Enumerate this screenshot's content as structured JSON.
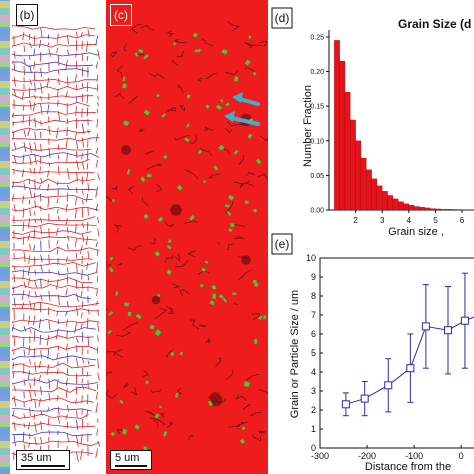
{
  "panels": {
    "b": {
      "tag": "(b)",
      "scale_label": "35 um"
    },
    "c": {
      "tag": "(c)",
      "scale_label": "5 um"
    },
    "d": {
      "tag": "(d)"
    },
    "e": {
      "tag": "(e)"
    }
  },
  "colors": {
    "map_red": "#ee1c1c",
    "grain_boundary_red": "#d8262a",
    "boundary_blue": "#3a3ad0",
    "particle_green": "#35d23c",
    "arrow_cyan": "#3fb0c8",
    "histogram_bar": "#e5131a",
    "line_series": "#2a2ab0"
  },
  "chart_data": [
    {
      "type": "bar",
      "panel": "d",
      "title": "Grain Size (d",
      "xlabel": "Grain size ,",
      "ylabel": "Number Fraction",
      "x_ticks": [
        "2",
        "3",
        "4",
        "5",
        "6"
      ],
      "y_ticks": [
        "0.00",
        "0.05",
        "0.10",
        "0.15",
        "0.20",
        "0.25"
      ],
      "ylim": [
        0,
        0.26
      ],
      "xlim": [
        1.0,
        6.6
      ],
      "bin_width": 0.2,
      "bin_starts": [
        1.2,
        1.4,
        1.6,
        1.8,
        2.0,
        2.2,
        2.4,
        2.6,
        2.8,
        3.0,
        3.2,
        3.4,
        3.6,
        3.8,
        4.0,
        4.2,
        4.4,
        4.6,
        4.8,
        5.0,
        5.2,
        5.4,
        5.6,
        5.8,
        6.0,
        6.2,
        6.4
      ],
      "values": [
        0.245,
        0.215,
        0.17,
        0.13,
        0.1,
        0.075,
        0.058,
        0.045,
        0.035,
        0.027,
        0.021,
        0.016,
        0.012,
        0.009,
        0.007,
        0.005,
        0.004,
        0.003,
        0.002,
        0.0015,
        0.001,
        0.001,
        0.0008,
        0.0006,
        0.0005,
        0.0004,
        0.0003
      ],
      "grid": false
    },
    {
      "type": "line",
      "panel": "e",
      "xlabel": "Distance from the",
      "ylabel": "Grain or Particle Size / um",
      "x_ticks": [
        "-300",
        "-200",
        "-100",
        "0"
      ],
      "y_ticks": [
        "0",
        "1",
        "2",
        "3",
        "4",
        "5",
        "6",
        "7",
        "8",
        "9",
        "10"
      ],
      "xlim": [
        -300,
        40
      ],
      "ylim": [
        0,
        10
      ],
      "series": [
        {
          "marker": "square-open",
          "x": [
            -245,
            -205,
            -155,
            -108,
            -75,
            -28,
            8,
            38
          ],
          "y": [
            2.3,
            2.6,
            3.3,
            4.2,
            6.4,
            6.2,
            6.7,
            7.0
          ],
          "err": [
            0.6,
            0.9,
            1.4,
            1.8,
            2.2,
            2.3,
            2.5,
            2.0
          ]
        }
      ],
      "grid": false
    }
  ]
}
